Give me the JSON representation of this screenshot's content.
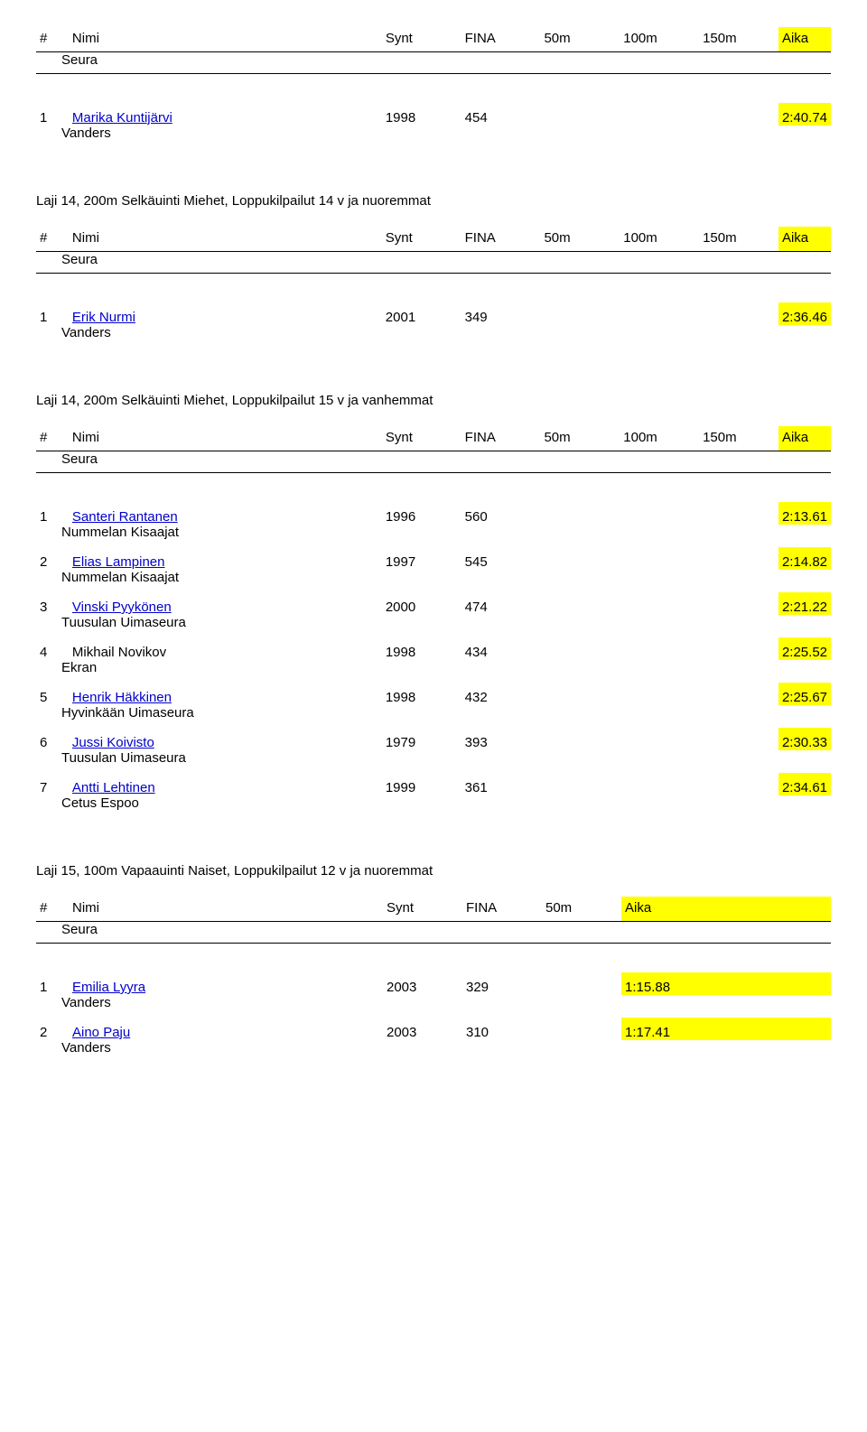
{
  "headers": {
    "hash": "#",
    "nimi": "Nimi",
    "synt": "Synt",
    "fina": "FINA",
    "s50": "50m",
    "s100": "100m",
    "s150": "150m",
    "aika": "Aika",
    "seura": "Seura"
  },
  "events": [
    {
      "title": null,
      "splits": [
        "50m",
        "100m",
        "150m"
      ],
      "rows": [
        {
          "rank": "1",
          "name": "Marika Kuntijärvi",
          "link": true,
          "club": "Vanders",
          "synt": "1998",
          "fina": "454",
          "aika": "2:40.74"
        }
      ]
    },
    {
      "title": "Laji 14, 200m Selkäuinti Miehet, Loppukilpailut 14 v ja nuoremmat",
      "splits": [
        "50m",
        "100m",
        "150m"
      ],
      "rows": [
        {
          "rank": "1",
          "name": "Erik Nurmi",
          "link": true,
          "club": "Vanders",
          "synt": "2001",
          "fina": "349",
          "aika": "2:36.46"
        }
      ]
    },
    {
      "title": "Laji 14, 200m Selkäuinti Miehet, Loppukilpailut 15 v ja vanhemmat",
      "splits": [
        "50m",
        "100m",
        "150m"
      ],
      "rows": [
        {
          "rank": "1",
          "name": "Santeri Rantanen",
          "link": true,
          "club": "Nummelan Kisaajat",
          "synt": "1996",
          "fina": "560",
          "aika": "2:13.61"
        },
        {
          "rank": "2",
          "name": "Elias Lampinen",
          "link": true,
          "club": "Nummelan Kisaajat",
          "synt": "1997",
          "fina": "545",
          "aika": "2:14.82"
        },
        {
          "rank": "3",
          "name": "Vinski Pyykönen",
          "link": true,
          "club": "Tuusulan Uimaseura",
          "synt": "2000",
          "fina": "474",
          "aika": "2:21.22"
        },
        {
          "rank": "4",
          "name": "Mikhail Novikov",
          "link": false,
          "club": "Ekran",
          "synt": "1998",
          "fina": "434",
          "aika": "2:25.52"
        },
        {
          "rank": "5",
          "name": "Henrik Häkkinen",
          "link": true,
          "club": "Hyvinkään Uimaseura",
          "synt": "1998",
          "fina": "432",
          "aika": "2:25.67"
        },
        {
          "rank": "6",
          "name": "Jussi Koivisto",
          "link": true,
          "club": "Tuusulan Uimaseura",
          "synt": "1979",
          "fina": "393",
          "aika": "2:30.33"
        },
        {
          "rank": "7",
          "name": "Antti Lehtinen",
          "link": true,
          "club": "Cetus Espoo",
          "synt": "1999",
          "fina": "361",
          "aika": "2:34.61"
        }
      ]
    },
    {
      "title": "Laji 15, 100m Vapaauinti Naiset, Loppukilpailut 12 v ja nuoremmat",
      "splits": [
        "50m"
      ],
      "rows": [
        {
          "rank": "1",
          "name": "Emilia Lyyra",
          "link": true,
          "club": "Vanders",
          "synt": "2003",
          "fina": "329",
          "aika": "1:15.88"
        },
        {
          "rank": "2",
          "name": "Aino Paju",
          "link": true,
          "club": "Vanders",
          "synt": "2003",
          "fina": "310",
          "aika": "1:17.41"
        }
      ]
    }
  ],
  "colors": {
    "highlight": "#ffff00",
    "link": "#0000cc",
    "text": "#000000",
    "background": "#ffffff",
    "rule": "#000000"
  }
}
